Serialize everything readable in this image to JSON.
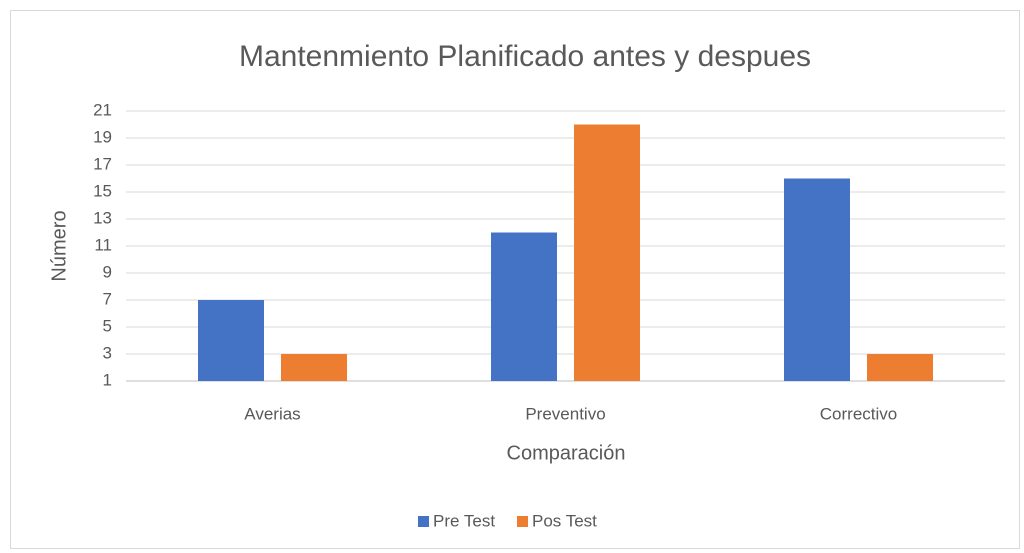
{
  "chart_data": {
    "type": "bar",
    "title": "Mantenmiento Planificado antes y despues",
    "xlabel": "Comparación",
    "ylabel": "Número",
    "categories": [
      "Averias",
      "Preventivo",
      "Correctivo"
    ],
    "series": [
      {
        "name": "Pre Test",
        "color": "#4472c4",
        "values": [
          7,
          12,
          16
        ]
      },
      {
        "name": "Pos Test",
        "color": "#ed7d31",
        "values": [
          3,
          20,
          3
        ]
      }
    ],
    "ylim": [
      1,
      21
    ],
    "yticks": [
      1,
      3,
      5,
      7,
      9,
      11,
      13,
      15,
      17,
      19,
      21
    ],
    "grid": true,
    "legend": "bottom"
  }
}
